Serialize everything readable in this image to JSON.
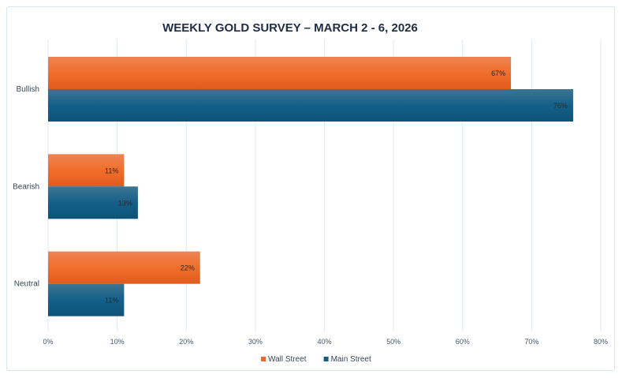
{
  "chart_data": {
    "type": "bar",
    "orientation": "horizontal",
    "title": "WEEKLY GOLD SURVEY – MARCH 2 - 6, 2026",
    "categories": [
      "Bullish",
      "Bearish",
      "Neutral"
    ],
    "series": [
      {
        "name": "Wall Street",
        "values": [
          67,
          11,
          22
        ],
        "labels": [
          "67%",
          "11%",
          "22%"
        ],
        "color": "#ec6a2c"
      },
      {
        "name": "Main Street",
        "values": [
          76,
          13,
          11
        ],
        "labels": [
          "76%",
          "13%",
          "11%"
        ],
        "color": "#165d82"
      }
    ],
    "xlim": [
      0,
      80
    ],
    "xticks": [
      0,
      10,
      20,
      30,
      40,
      50,
      60,
      70,
      80
    ],
    "xtick_labels": [
      "0%",
      "10%",
      "20%",
      "30%",
      "40%",
      "50%",
      "60%",
      "70%",
      "80%"
    ],
    "xlabel": "",
    "ylabel": "",
    "grid": "vertical",
    "legend": "bottom"
  }
}
